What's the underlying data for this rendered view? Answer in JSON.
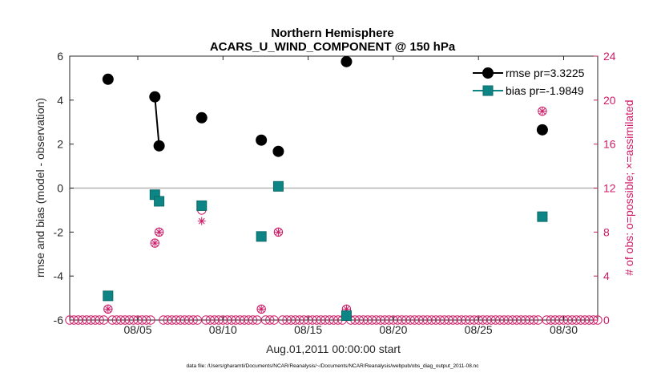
{
  "chart_data": {
    "type": "scatter",
    "title": "Northern Hemisphere",
    "subtitle": "ACARS_U_WIND_COMPONENT @ 150 hPa",
    "xlabel": "Aug.01,2011 00:00:00 start",
    "ylabel": "rmse and bias (model - observation)",
    "y2label": "# of obs: o=possible; ×=assimilated",
    "footer": "data file: /Users/gharamti/Documents/NCAR/Reanalysis/~/Documents/NCAR/Reanalysis/webpub/obs_diag_output_2011-08.nc",
    "xlim": [
      1,
      32
    ],
    "ylim": [
      -6,
      6
    ],
    "y2lim": [
      0,
      24
    ],
    "x_ticks": [
      5,
      10,
      15,
      20,
      25,
      30
    ],
    "x_tick_labels": [
      "08/05",
      "08/10",
      "08/15",
      "08/20",
      "08/25",
      "08/30"
    ],
    "y_ticks": [
      -6,
      -4,
      -2,
      0,
      2,
      4,
      6
    ],
    "y_tick_labels": [
      "-6",
      "-4",
      "-2",
      "0",
      "2",
      "4",
      "6"
    ],
    "y2_ticks": [
      0,
      4,
      8,
      12,
      16,
      20,
      24
    ],
    "y2_tick_labels": [
      "0",
      "4",
      "8",
      "12",
      "16",
      "20",
      "24"
    ],
    "zero_line": 0,
    "legend_position": "top-right",
    "colors": {
      "rmse": "#000000",
      "bias": "#0e8585",
      "obs": "#cc1a66",
      "zero": "#b3b3b3",
      "axis": "#262626"
    },
    "series": [
      {
        "name": "rmse pr=3.3225",
        "key": "rmse",
        "points": [
          [
            3.25,
            4.95
          ],
          [
            6.0,
            4.15
          ],
          [
            6.25,
            1.92
          ],
          [
            8.75,
            3.2
          ],
          [
            12.25,
            2.18
          ],
          [
            13.25,
            1.67
          ],
          [
            17.25,
            5.75
          ],
          [
            28.75,
            2.65
          ]
        ],
        "segments": [
          [
            [
              6.0,
              4.15
            ],
            [
              6.25,
              1.92
            ]
          ]
        ]
      },
      {
        "name": "bias pr=-1.9849",
        "key": "bias",
        "points": [
          [
            3.25,
            -4.9
          ],
          [
            6.0,
            -0.3
          ],
          [
            6.25,
            -0.6
          ],
          [
            8.75,
            -0.8
          ],
          [
            12.25,
            -2.2
          ],
          [
            13.25,
            0.08
          ],
          [
            17.25,
            -5.8
          ],
          [
            28.75,
            -1.3
          ]
        ],
        "segments": [
          [
            [
              6.0,
              -0.3
            ],
            [
              6.25,
              -0.6
            ]
          ]
        ]
      }
    ],
    "obs_possible": {
      "x_start": 1.0,
      "x_step": 0.25,
      "x_end": 32.0,
      "nonzero": [
        [
          3.25,
          1
        ],
        [
          6.0,
          7
        ],
        [
          6.25,
          8
        ],
        [
          8.75,
          10
        ],
        [
          12.25,
          1
        ],
        [
          13.25,
          8
        ],
        [
          17.25,
          1
        ],
        [
          28.75,
          19
        ]
      ]
    },
    "obs_assimilated": [
      [
        3.25,
        1
      ],
      [
        6.0,
        7
      ],
      [
        6.25,
        8
      ],
      [
        8.75,
        9
      ],
      [
        12.25,
        1
      ],
      [
        13.25,
        8
      ],
      [
        17.25,
        1
      ],
      [
        28.75,
        19
      ]
    ]
  }
}
